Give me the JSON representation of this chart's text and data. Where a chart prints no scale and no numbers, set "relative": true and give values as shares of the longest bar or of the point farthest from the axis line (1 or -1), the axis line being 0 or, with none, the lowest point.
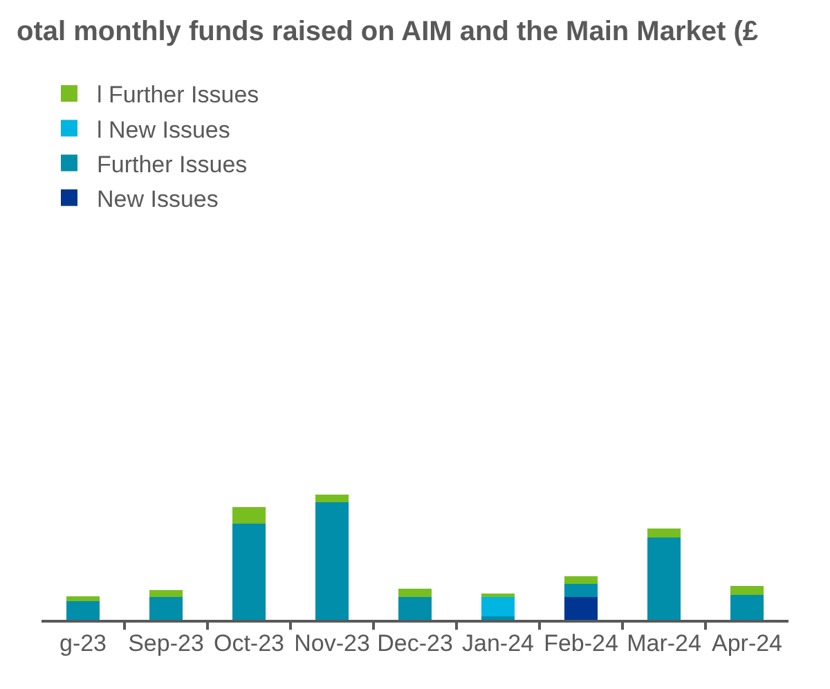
{
  "chart_data": {
    "type": "bar",
    "stacked": true,
    "relative": true,
    "title": "otal monthly funds raised on AIM and the Main Market (£",
    "categories": [
      "g-23",
      "Sep-23",
      "Oct-23",
      "Nov-23",
      "Dec-23",
      "Jan-24",
      "Feb-24",
      "Mar-24",
      "Apr-24"
    ],
    "series": [
      {
        "name": "New Issues",
        "color": "#003591",
        "values": [
          0,
          0,
          0,
          0,
          0,
          0,
          0.18,
          0,
          0
        ]
      },
      {
        "name": "Further Issues",
        "color": "#008eab",
        "values": [
          0.15,
          0.18,
          0.77,
          0.94,
          0.18,
          0.03,
          0.11,
          0.66,
          0.2
        ]
      },
      {
        "name": "l New Issues",
        "color": "#00b5e2",
        "values": [
          0,
          0,
          0,
          0,
          0,
          0.15,
          0,
          0,
          0
        ]
      },
      {
        "name": "l Further Issues",
        "color": "#78be20",
        "values": [
          0.04,
          0.06,
          0.13,
          0.06,
          0.07,
          0.03,
          0.06,
          0.07,
          0.07
        ]
      }
    ],
    "legend": "top left"
  }
}
